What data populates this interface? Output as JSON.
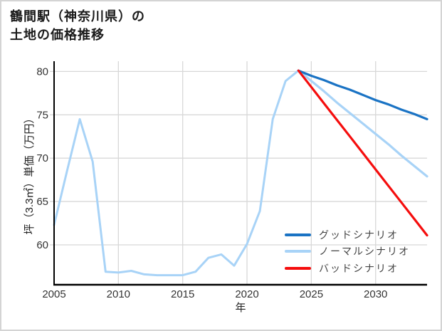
{
  "title": {
    "line1": "鶴間駅（神奈川県）の",
    "line2": "土地の価格推移"
  },
  "chart_data": {
    "type": "line",
    "title": "鶴間駅（神奈川県）の土地の価格推移",
    "xlabel": "年",
    "ylabel": "坪（3.3㎡）単価（万円）",
    "xlim": [
      2005,
      2034
    ],
    "ylim": [
      55.4,
      81.1
    ],
    "xticks": [
      "2005",
      "2010",
      "2015",
      "2020",
      "2025",
      "2030"
    ],
    "yticks": [
      "60",
      "65",
      "70",
      "75",
      "80"
    ],
    "grid": true,
    "legend_position": "lower right inside plot",
    "history": {
      "years": [
        2005,
        2006,
        2007,
        2008,
        2009,
        2010,
        2011,
        2012,
        2013,
        2014,
        2015,
        2016,
        2017,
        2018,
        2019,
        2020,
        2021,
        2022,
        2023,
        2024
      ],
      "values": [
        62.3,
        68.5,
        74.5,
        69.6,
        56.9,
        56.8,
        57.0,
        56.6,
        56.5,
        56.5,
        56.5,
        56.9,
        58.5,
        58.9,
        57.6,
        60.1,
        63.9,
        74.5,
        78.9,
        80.1
      ],
      "color": "#a8d3f7"
    },
    "projection_years": [
      2024,
      2025,
      2026,
      2027,
      2028,
      2029,
      2030,
      2031,
      2032,
      2033,
      2034
    ],
    "series": [
      {
        "name": "グッドシナリオ",
        "color": "#1a73c4",
        "values": [
          80.1,
          79.5,
          79.0,
          78.4,
          77.9,
          77.3,
          76.7,
          76.2,
          75.6,
          75.1,
          74.5
        ]
      },
      {
        "name": "ノーマルシナリオ",
        "color": "#a8d3f7",
        "values": [
          80.1,
          78.9,
          77.7,
          76.4,
          75.2,
          74.0,
          72.8,
          71.6,
          70.3,
          69.1,
          67.9
        ]
      },
      {
        "name": "バッドシナリオ",
        "color": "#f50d0d",
        "values": [
          80.1,
          78.2,
          76.3,
          74.4,
          72.5,
          70.6,
          68.7,
          66.8,
          64.9,
          63.0,
          61.1
        ]
      }
    ]
  },
  "colors": {
    "grid": "#d8d8d8",
    "spine": "#000000",
    "tick_text": "#333333",
    "legend_text": "#444444",
    "border": "#d4d4d4",
    "background": "#ffffff"
  }
}
